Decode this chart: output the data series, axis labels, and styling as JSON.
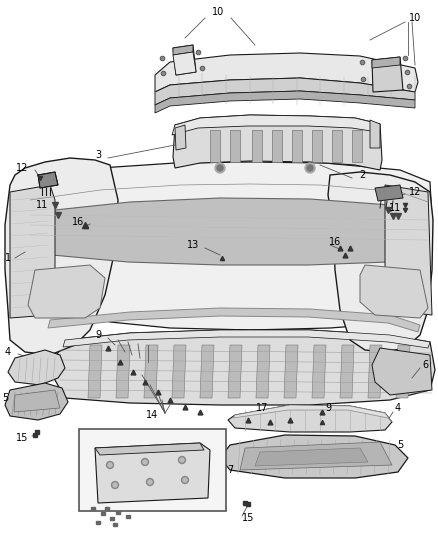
{
  "bg_color": "#ffffff",
  "fig_width": 4.38,
  "fig_height": 5.33,
  "dpi": 100,
  "line_color": "#1a1a1a",
  "fill_light": "#e8e8e8",
  "fill_mid": "#d0d0d0",
  "fill_dark": "#b0b0b0",
  "fill_darker": "#909090",
  "label_color": "#000000",
  "label_fontsize": 7.0,
  "leader_color": "#555555"
}
